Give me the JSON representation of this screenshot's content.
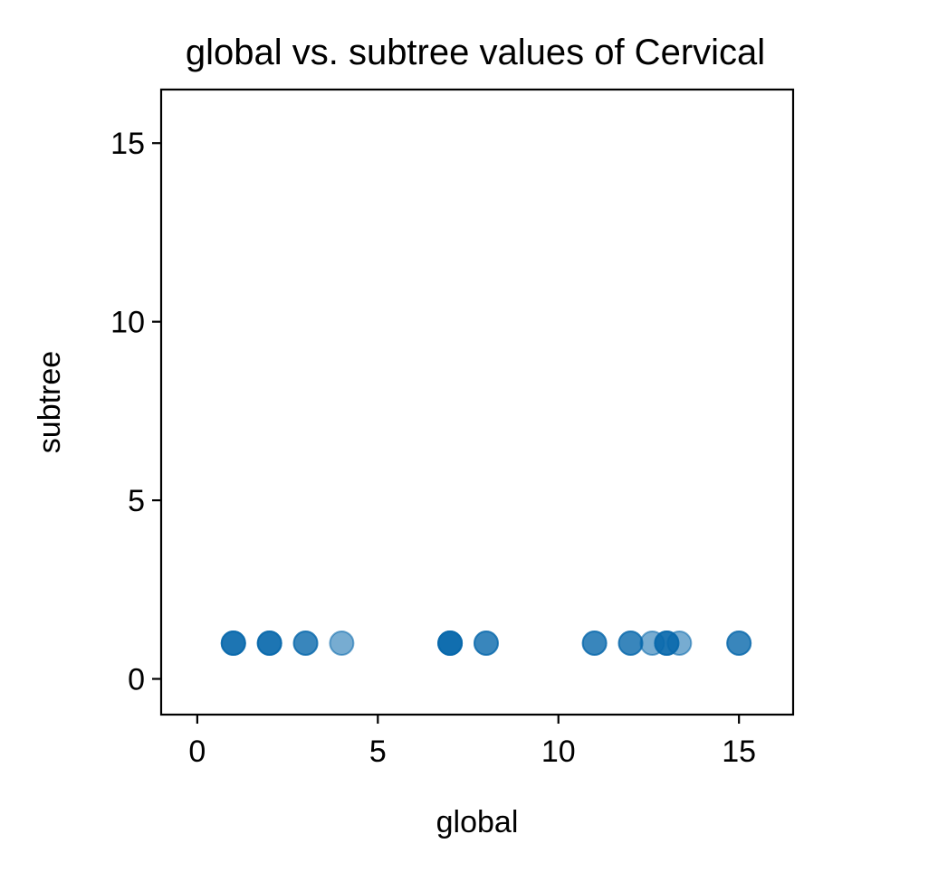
{
  "chart_data": {
    "type": "scatter",
    "title": "global vs. subtree values of Cervical",
    "xlabel": "global",
    "ylabel": "subtree",
    "xlim": [
      -1,
      16.5
    ],
    "ylim": [
      -1,
      16.5
    ],
    "xticks": [
      0,
      5,
      10,
      15
    ],
    "yticks": [
      0,
      5,
      10,
      15
    ],
    "grid": false,
    "marker_color": "#0868ac",
    "marker_alpha": 0.55,
    "series": [
      {
        "points": [
          {
            "x": 1,
            "y": 1
          },
          {
            "x": 1,
            "y": 1
          },
          {
            "x": 1,
            "y": 1
          },
          {
            "x": 2,
            "y": 1
          },
          {
            "x": 2,
            "y": 1
          },
          {
            "x": 2,
            "y": 1
          },
          {
            "x": 3,
            "y": 1
          },
          {
            "x": 3,
            "y": 1
          },
          {
            "x": 4,
            "y": 1
          },
          {
            "x": 7,
            "y": 1
          },
          {
            "x": 7,
            "y": 1
          },
          {
            "x": 7,
            "y": 1
          },
          {
            "x": 7,
            "y": 1
          },
          {
            "x": 8,
            "y": 1
          },
          {
            "x": 8,
            "y": 1
          },
          {
            "x": 11,
            "y": 1
          },
          {
            "x": 11,
            "y": 1
          },
          {
            "x": 12,
            "y": 1
          },
          {
            "x": 12,
            "y": 1
          },
          {
            "x": 12.6,
            "y": 1
          },
          {
            "x": 13,
            "y": 1
          },
          {
            "x": 13,
            "y": 1
          },
          {
            "x": 13,
            "y": 1
          },
          {
            "x": 13.35,
            "y": 1
          },
          {
            "x": 15,
            "y": 1
          },
          {
            "x": 15,
            "y": 1
          }
        ]
      }
    ]
  }
}
